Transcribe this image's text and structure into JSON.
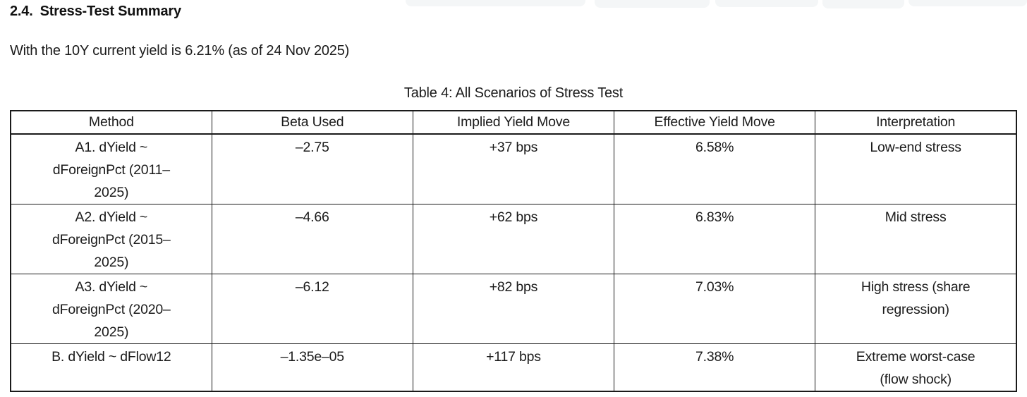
{
  "colors": {
    "text": "#1b1b1b",
    "table_border": "#1a1a1a",
    "artifact_gray": "#f4f6f7",
    "background": "#ffffff"
  },
  "section": {
    "heading_number": "2.4.",
    "heading_title": "Stress-Test Summary",
    "intro_line": "With the 10Y current yield is 6.21% (as of 24 Nov 2025)"
  },
  "table": {
    "caption": "Table 4: All Scenarios of Stress Test",
    "columns": [
      "Method",
      "Beta Used",
      "Implied Yield Move",
      "Effective Yield Move",
      "Interpretation"
    ],
    "rows": [
      {
        "method": [
          "A1. dYield ~",
          "dForeignPct (2011–",
          "2025)"
        ],
        "beta_used": "–2.75",
        "implied_yield_move": "+37 bps",
        "effective_yield_move": "6.58%",
        "interpretation": [
          "Low-end stress"
        ]
      },
      {
        "method": [
          "A2. dYield ~",
          "dForeignPct (2015–",
          "2025)"
        ],
        "beta_used": "–4.66",
        "implied_yield_move": "+62 bps",
        "effective_yield_move": "6.83%",
        "interpretation": [
          "Mid stress"
        ]
      },
      {
        "method": [
          "A3. dYield ~",
          "dForeignPct (2020–",
          "2025)"
        ],
        "beta_used": "–6.12",
        "implied_yield_move": "+82 bps",
        "effective_yield_move": "7.03%",
        "interpretation": [
          "High stress (share",
          "regression)"
        ]
      },
      {
        "method": [
          "B. dYield ~ dFlow12"
        ],
        "beta_used": "–1.35e–05",
        "implied_yield_move": "+117 bps",
        "effective_yield_move": "7.38%",
        "interpretation": [
          "Extreme worst-case",
          "(flow shock)"
        ]
      }
    ]
  }
}
